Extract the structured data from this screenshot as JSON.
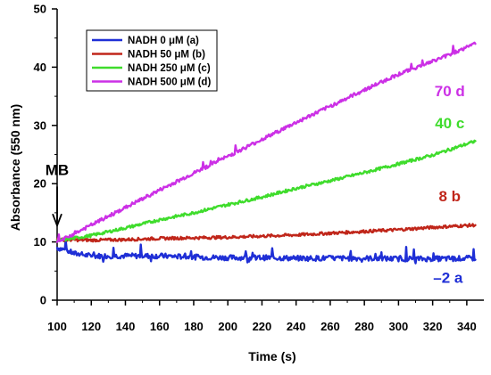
{
  "chart_data": {
    "type": "line",
    "title": "",
    "xlabel": "Time (s)",
    "ylabel": "Absorbance (550 nm)",
    "xlim": [
      100,
      350
    ],
    "ylim": [
      0,
      50
    ],
    "x_ticks": [
      100,
      120,
      140,
      160,
      180,
      200,
      220,
      240,
      260,
      280,
      300,
      320,
      340
    ],
    "y_ticks": [
      0,
      10,
      20,
      30,
      40,
      50
    ],
    "grid": false,
    "legend_position": "top-left",
    "series": [
      {
        "name": "NADH 0 μM (a)",
        "color": "#1f2fd6",
        "x": [
          100,
          105,
          110,
          120,
          140,
          160,
          180,
          200,
          220,
          240,
          260,
          280,
          300,
          320,
          345
        ],
        "y": [
          9.0,
          8.6,
          8.0,
          7.6,
          7.6,
          7.6,
          7.4,
          7.3,
          7.3,
          7.2,
          7.2,
          7.2,
          7.1,
          7.1,
          7.2
        ]
      },
      {
        "name": "NADH 50 μM (b)",
        "color": "#c0261a",
        "x": [
          100,
          120,
          140,
          160,
          180,
          200,
          220,
          240,
          260,
          280,
          300,
          320,
          345
        ],
        "y": [
          10.4,
          10.3,
          10.4,
          10.6,
          10.7,
          10.8,
          11.0,
          11.2,
          11.5,
          11.8,
          12.1,
          12.5,
          12.9
        ]
      },
      {
        "name": "NADH 250 μM (c)",
        "color": "#3fdc2c",
        "x": [
          100,
          120,
          140,
          160,
          180,
          200,
          220,
          240,
          260,
          280,
          300,
          320,
          345
        ],
        "y": [
          10.2,
          11.1,
          12.4,
          13.8,
          15.0,
          16.4,
          17.7,
          19.2,
          20.5,
          21.9,
          23.4,
          24.9,
          27.3
        ]
      },
      {
        "name": "NADH 500 μM (d)",
        "color": "#cc30e6",
        "x": [
          100,
          120,
          140,
          160,
          180,
          200,
          220,
          240,
          260,
          280,
          300,
          320,
          345
        ],
        "y": [
          9.9,
          12.9,
          15.9,
          18.9,
          21.8,
          24.7,
          27.6,
          30.5,
          33.3,
          36.1,
          38.8,
          41.0,
          44.0
        ]
      }
    ],
    "annotations": [
      {
        "text": "70 d",
        "x": 330,
        "y": 35,
        "color": "#cc30e6"
      },
      {
        "text": "40 c",
        "x": 330,
        "y": 29.5,
        "color": "#3fdc2c"
      },
      {
        "text": "8 b",
        "x": 330,
        "y": 17,
        "color": "#c0261a"
      },
      {
        "text": "–2 a",
        "x": 329,
        "y": 3,
        "color": "#1f2fd6"
      },
      {
        "text": "MB",
        "x": 100,
        "y": 21.5,
        "color": "#000000"
      }
    ]
  }
}
